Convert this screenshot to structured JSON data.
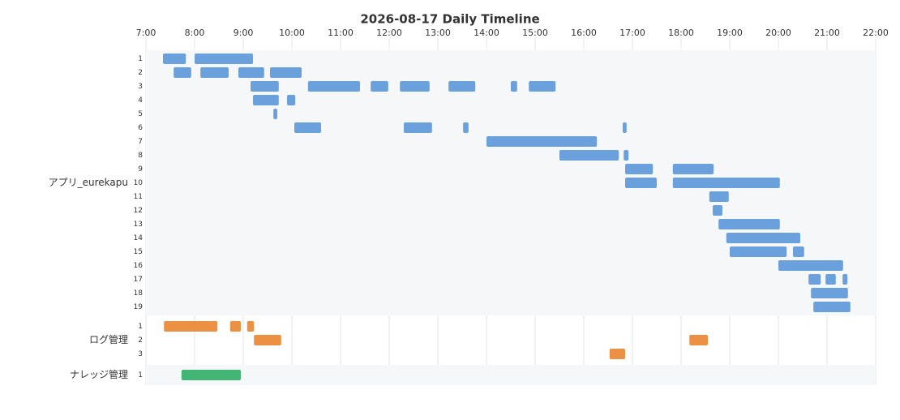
{
  "chart_data": {
    "type": "timeline",
    "title": "2026-08-17 Daily Timeline",
    "xlim": [
      7,
      22
    ],
    "xticks": [
      {
        "value": 7,
        "label": "7:00"
      },
      {
        "value": 8,
        "label": "8:00"
      },
      {
        "value": 9,
        "label": "9:00"
      },
      {
        "value": 10,
        "label": "10:00"
      },
      {
        "value": 11,
        "label": "11:00"
      },
      {
        "value": 12,
        "label": "12:00"
      },
      {
        "value": 13,
        "label": "13:00"
      },
      {
        "value": 14,
        "label": "14:00"
      },
      {
        "value": 15,
        "label": "15:00"
      },
      {
        "value": 16,
        "label": "16:00"
      },
      {
        "value": 17,
        "label": "17:00"
      },
      {
        "value": 18,
        "label": "18:00"
      },
      {
        "value": 19,
        "label": "19:00"
      },
      {
        "value": 20,
        "label": "20:00"
      },
      {
        "value": 21,
        "label": "21:00"
      },
      {
        "value": 22,
        "label": "22:00"
      }
    ],
    "groups": [
      {
        "name": "アプリ_eurekapu",
        "color": "#6aa0dc",
        "rows": [
          {
            "label": "1",
            "bars": [
              [
                7.35,
                7.82
              ],
              [
                8.0,
                9.2
              ]
            ]
          },
          {
            "label": "2",
            "bars": [
              [
                7.57,
                7.93
              ],
              [
                8.12,
                8.7
              ],
              [
                8.9,
                9.43
              ],
              [
                9.55,
                10.2
              ]
            ]
          },
          {
            "label": "3",
            "bars": [
              [
                9.15,
                9.73
              ],
              [
                10.33,
                11.4
              ],
              [
                11.62,
                11.98
              ],
              [
                12.22,
                12.83
              ],
              [
                13.22,
                13.77
              ],
              [
                14.5,
                14.63
              ],
              [
                14.87,
                15.42
              ]
            ]
          },
          {
            "label": "4",
            "bars": [
              [
                9.2,
                9.73
              ],
              [
                9.9,
                10.07
              ]
            ]
          },
          {
            "label": "5",
            "bars": [
              [
                9.62,
                9.7
              ]
            ]
          },
          {
            "label": "6",
            "bars": [
              [
                10.05,
                10.6
              ],
              [
                12.3,
                12.88
              ],
              [
                13.52,
                13.63
              ],
              [
                16.8,
                16.88
              ]
            ]
          },
          {
            "label": "7",
            "bars": [
              [
                14.0,
                16.27
              ]
            ]
          },
          {
            "label": "8",
            "bars": [
              [
                15.5,
                16.72
              ],
              [
                16.82,
                16.92
              ]
            ]
          },
          {
            "label": "9",
            "bars": [
              [
                16.85,
                17.42
              ],
              [
                17.83,
                18.67
              ]
            ]
          },
          {
            "label": "10",
            "bars": [
              [
                16.85,
                17.5
              ],
              [
                17.83,
                20.03
              ]
            ]
          },
          {
            "label": "11",
            "bars": [
              [
                18.58,
                18.98
              ]
            ]
          },
          {
            "label": "12",
            "bars": [
              [
                18.65,
                18.85
              ]
            ]
          },
          {
            "label": "13",
            "bars": [
              [
                18.77,
                20.03
              ]
            ]
          },
          {
            "label": "14",
            "bars": [
              [
                18.93,
                20.45
              ]
            ]
          },
          {
            "label": "15",
            "bars": [
              [
                19.0,
                20.17
              ],
              [
                20.3,
                20.53
              ]
            ]
          },
          {
            "label": "16",
            "bars": [
              [
                20.0,
                21.33
              ]
            ]
          },
          {
            "label": "17",
            "bars": [
              [
                20.62,
                20.87
              ],
              [
                20.97,
                21.18
              ],
              [
                21.32,
                21.42
              ]
            ]
          },
          {
            "label": "18",
            "bars": [
              [
                20.67,
                21.43
              ]
            ]
          },
          {
            "label": "19",
            "bars": [
              [
                20.72,
                21.48
              ]
            ]
          }
        ]
      },
      {
        "name": "ログ管理",
        "color": "#ec9144",
        "rows": [
          {
            "label": "1",
            "bars": [
              [
                7.37,
                8.47
              ],
              [
                8.73,
                8.95
              ],
              [
                9.08,
                9.22
              ]
            ]
          },
          {
            "label": "2",
            "bars": [
              [
                9.22,
                9.78
              ],
              [
                18.17,
                18.55
              ]
            ]
          },
          {
            "label": "3",
            "bars": [
              [
                16.53,
                16.85
              ]
            ]
          }
        ]
      },
      {
        "name": "ナレッジ管理",
        "color": "#43b574",
        "rows": [
          {
            "label": "1",
            "bars": [
              [
                7.73,
                8.95
              ]
            ]
          }
        ]
      }
    ]
  }
}
